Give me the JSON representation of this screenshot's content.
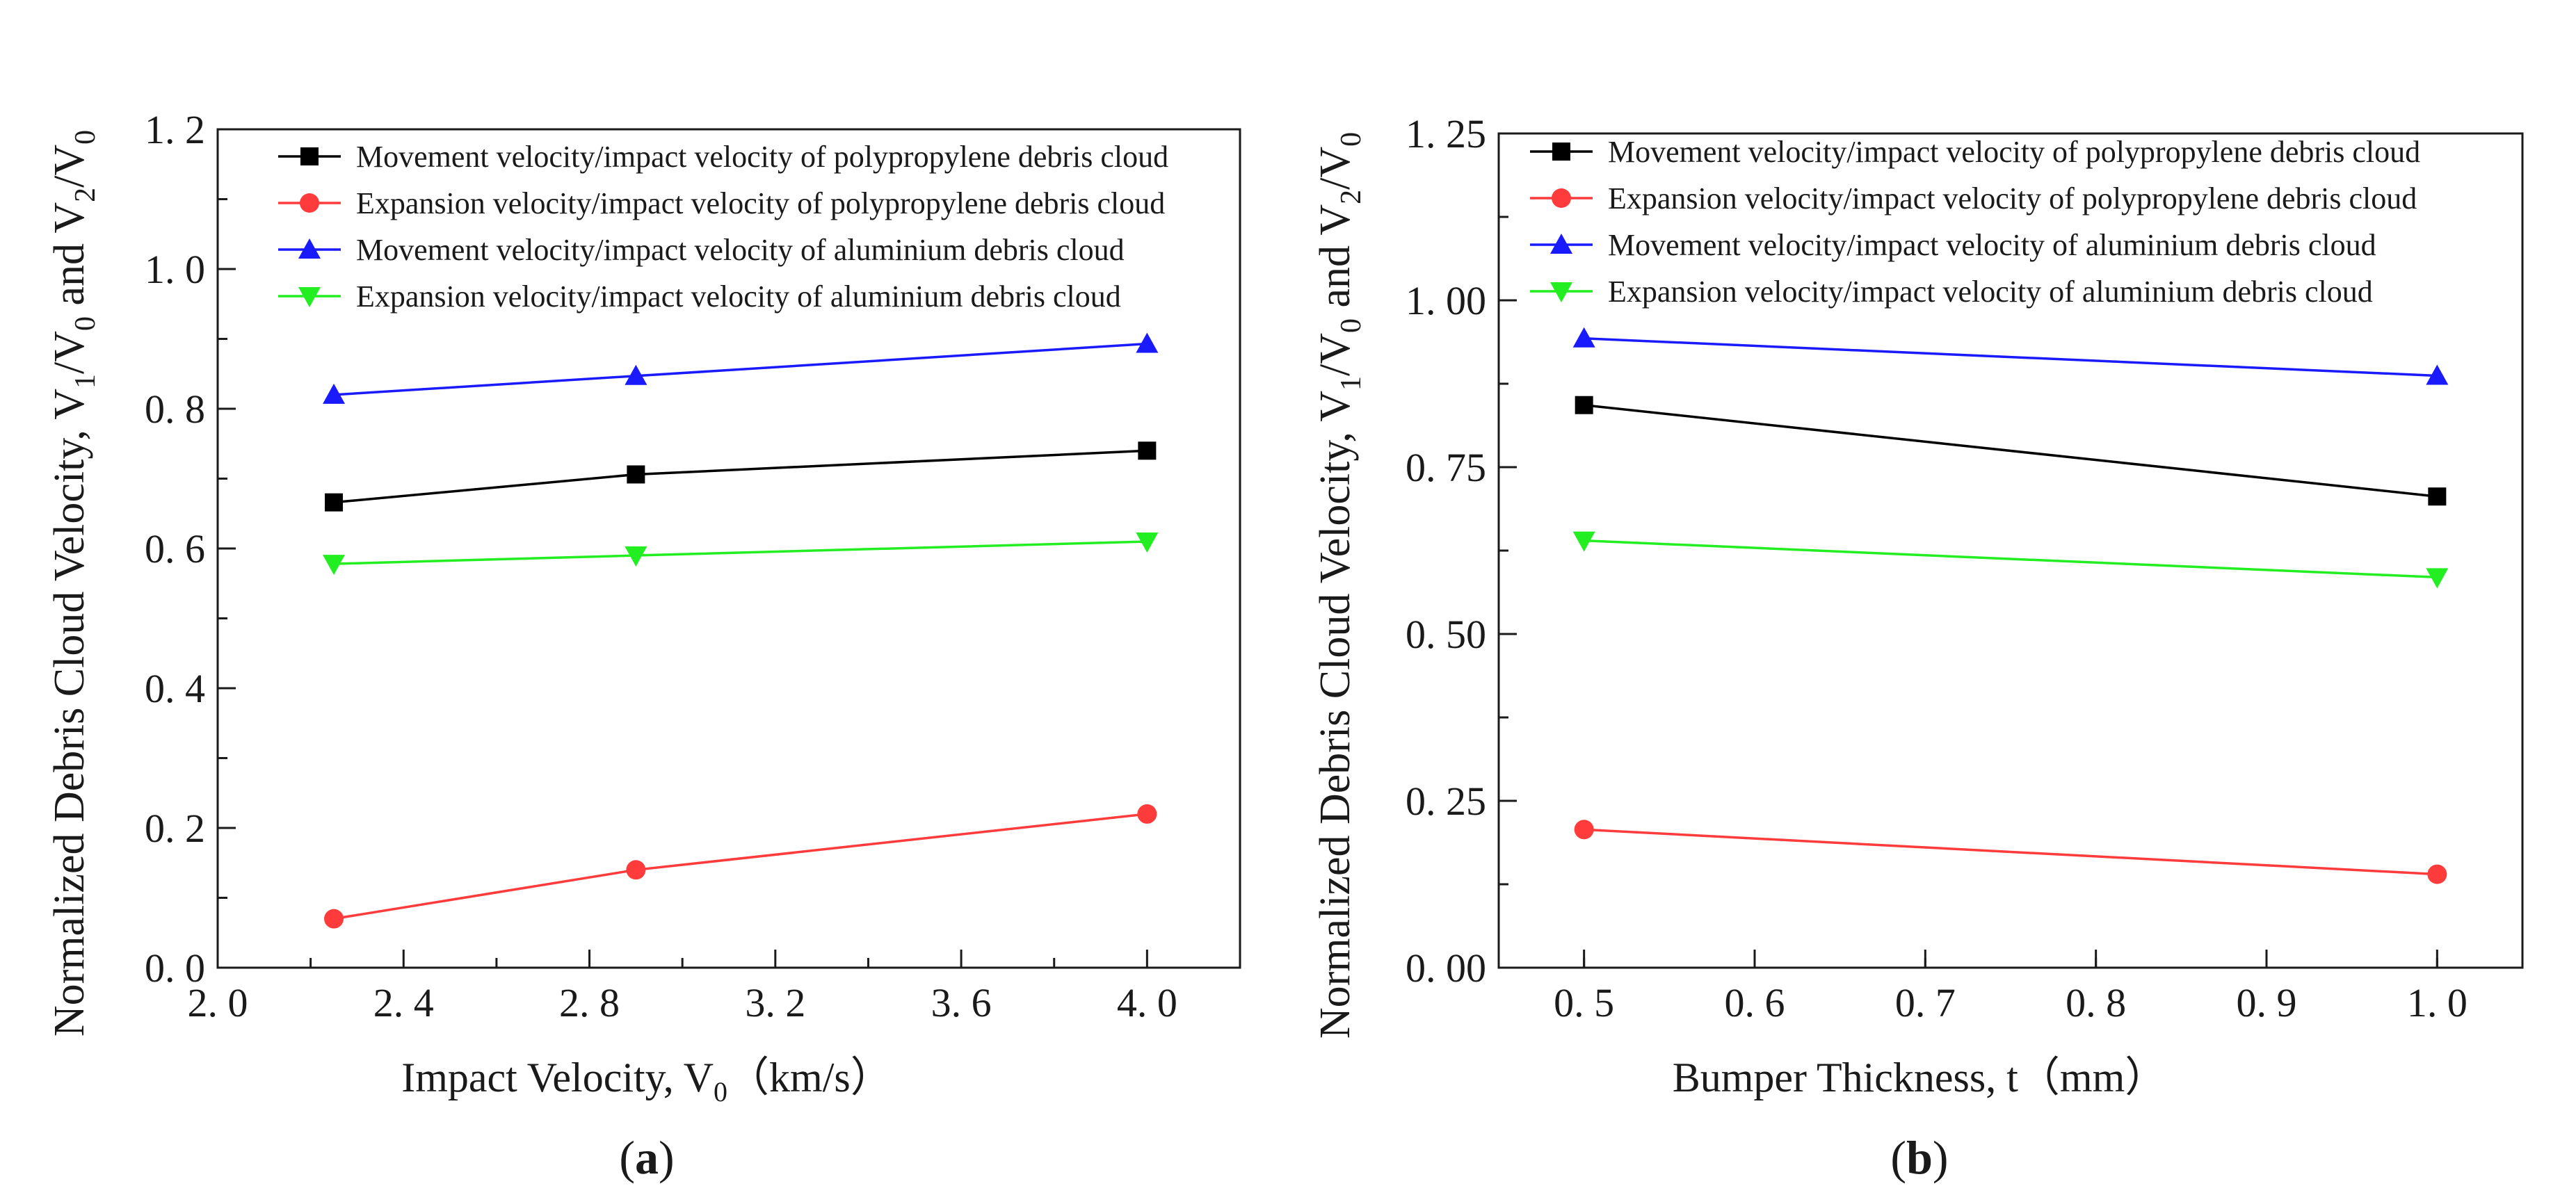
{
  "chart_data": [
    {
      "type": "line",
      "panel_label": "(a)",
      "panel_letter": "a",
      "xlabel": "Impact Velocity, V",
      "xlabel_sub": "0",
      "xlabel_units": "（km/s）",
      "ylabel": {
        "main": "Normalized Debris Cloud Velocity,   V",
        "sub1": "1",
        "mid1": "/V",
        "sub2": "0",
        "mid2": " and V",
        "sub3": "2",
        "mid3": "/V",
        "sub4": "0"
      },
      "xlim": [
        2.0,
        4.2
      ],
      "ylim": [
        0.0,
        1.2
      ],
      "xticks": [
        2.0,
        2.4,
        2.8,
        3.2,
        3.6,
        4.0
      ],
      "xtick_labels": [
        "2. 0",
        "2. 4",
        "2. 8",
        "3. 2",
        "3. 6",
        "4. 0"
      ],
      "yticks": [
        0.0,
        0.2,
        0.4,
        0.6,
        0.8,
        1.0,
        1.2
      ],
      "ytick_labels": [
        "0. 0",
        "0. 2",
        "0. 4",
        "0. 6",
        "0. 8",
        "1. 0",
        "1. 2"
      ],
      "legend_position": "top-left",
      "x": [
        2.25,
        2.9,
        4.0
      ],
      "series": [
        {
          "name": "Movement velocity/impact velocity of polypropylene debris cloud",
          "color": "#000000",
          "marker": "square",
          "values": [
            0.666,
            0.706,
            0.74
          ]
        },
        {
          "name": "Expansion velocity/impact velocity of polypropylene debris cloud",
          "color": "#ff3b3b",
          "marker": "circle",
          "values": [
            0.07,
            0.14,
            0.22
          ]
        },
        {
          "name": "Movement velocity/impact velocity of aluminium debris cloud",
          "color": "#1a1aff",
          "marker": "triangle-up",
          "values": [
            0.82,
            0.847,
            0.893
          ]
        },
        {
          "name": "Expansion velocity/impact velocity of aluminium debris cloud",
          "color": "#22ee22",
          "marker": "triangle-down",
          "values": [
            0.578,
            0.59,
            0.61
          ]
        }
      ]
    },
    {
      "type": "line",
      "panel_label": "(b)",
      "panel_letter": "b",
      "xlabel": "Bumper Thickness, t",
      "xlabel_sub": "",
      "xlabel_units": "（mm）",
      "ylabel": {
        "main": "Normalized Debris Cloud Velocity,   V",
        "sub1": "1",
        "mid1": "/V",
        "sub2": "0",
        "mid2": " and V",
        "sub3": "2",
        "mid3": "/V",
        "sub4": "0"
      },
      "xlim": [
        0.45,
        1.05
      ],
      "ylim": [
        0.0,
        1.25
      ],
      "xticks": [
        0.5,
        0.6,
        0.7,
        0.8,
        0.9,
        1.0
      ],
      "xtick_labels": [
        "0. 5",
        "0. 6",
        "0. 7",
        "0. 8",
        "0. 9",
        "1. 0"
      ],
      "yticks": [
        0.0,
        0.25,
        0.5,
        0.75,
        1.0,
        1.25
      ],
      "ytick_labels": [
        "0. 00",
        "0. 25",
        "0. 50",
        "0. 75",
        "1. 00",
        "1. 25"
      ],
      "legend_position": "top-left",
      "x": [
        0.5,
        1.0
      ],
      "series": [
        {
          "name": "Movement velocity/impact velocity of polypropylene debris cloud",
          "color": "#000000",
          "marker": "square",
          "values": [
            0.843,
            0.706
          ]
        },
        {
          "name": "Expansion velocity/impact velocity of polypropylene debris cloud",
          "color": "#ff3b3b",
          "marker": "circle",
          "values": [
            0.207,
            0.14
          ]
        },
        {
          "name": "Movement velocity/impact velocity of aluminium debris cloud",
          "color": "#1a1aff",
          "marker": "triangle-up",
          "values": [
            0.943,
            0.887
          ]
        },
        {
          "name": "Expansion velocity/impact velocity of aluminium debris cloud",
          "color": "#22ee22",
          "marker": "triangle-down",
          "values": [
            0.64,
            0.585
          ]
        }
      ]
    }
  ]
}
